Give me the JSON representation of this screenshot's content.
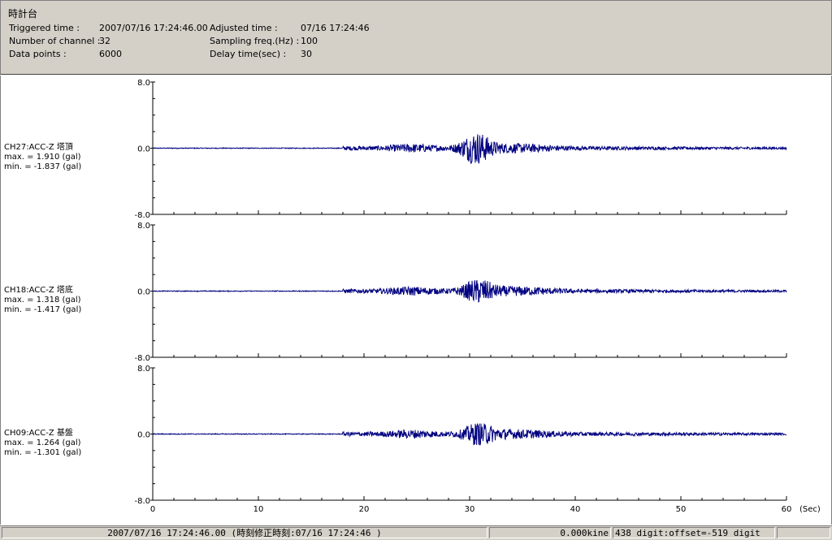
{
  "header": {
    "title": "時計台",
    "fields": {
      "triggered_label": "Triggered time :",
      "triggered_value": "2007/07/16 17:24:46.00",
      "adjusted_label": "Adjusted time :",
      "adjusted_value": "07/16 17:24:46",
      "channels_label": "Number of channel :",
      "channels_value": "32",
      "sampling_label": "Sampling freq.(Hz) :",
      "sampling_value": "100",
      "points_label": "Data points :",
      "points_value": "6000",
      "delay_label": "Delay time(sec) :",
      "delay_value": "30"
    }
  },
  "chart_data": {
    "type": "line",
    "x_unit": "(Sec)",
    "xlim": [
      0,
      60
    ],
    "x_ticks": [
      0,
      10,
      20,
      30,
      40,
      50,
      60
    ],
    "ylim": [
      -8.0,
      8.0
    ],
    "y_tick_labels": [
      "8.0",
      "0.0",
      "-8.0"
    ],
    "line_color": "#000080",
    "event_window_sec": [
      18,
      60
    ],
    "series": [
      {
        "name": "CH27:ACC-Z 塔頂",
        "max_text": "max. = 1.910 (gal)",
        "min_text": "min. = -1.837 (gal)",
        "max": 1.91,
        "min": -1.837,
        "peak_time": 30.6
      },
      {
        "name": "CH18:ACC-Z 塔底",
        "max_text": "max. = 1.318 (gal)",
        "min_text": "min. = -1.417 (gal)",
        "max": 1.318,
        "min": -1.417,
        "peak_time": 30.8
      },
      {
        "name": "CH09:ACC-Z 基盤",
        "max_text": "max. = 1.264 (gal)",
        "min_text": "min. = -1.301 (gal)",
        "max": 1.264,
        "min": -1.301,
        "peak_time": 30.9
      }
    ]
  },
  "status": {
    "time": "2007/07/16 17:24:46.00  (時刻修正時刻:07/16 17:24:46  )",
    "velocity": "0.000kine",
    "digit": "438 digit:offset=-519 digit"
  }
}
